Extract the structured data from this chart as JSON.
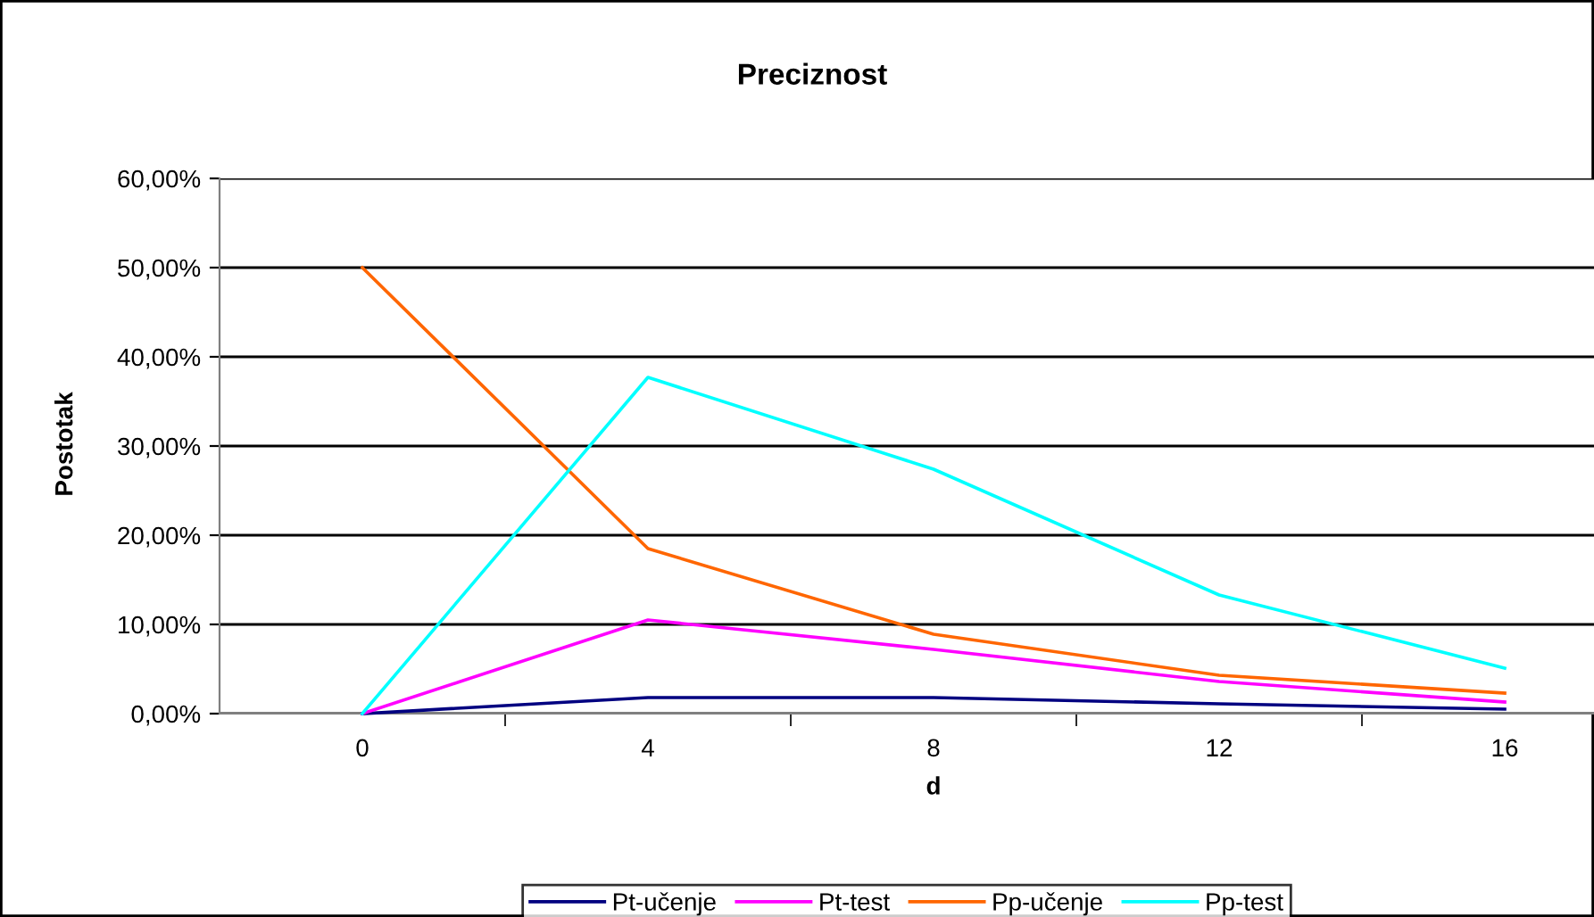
{
  "chart_data": {
    "type": "line",
    "title": "Preciznost",
    "xlabel": "d",
    "ylabel": "Postotak",
    "categories": [
      "0",
      "4",
      "8",
      "12",
      "16"
    ],
    "series": [
      {
        "name": "Pt-učenje",
        "color": "#000080",
        "values": [
          0,
          1.8,
          1.8,
          1.1,
          0.5
        ]
      },
      {
        "name": "Pt-test",
        "color": "#ff00ff",
        "values": [
          0,
          10.5,
          7.2,
          3.6,
          1.3
        ]
      },
      {
        "name": "Pp-učenje",
        "color": "#ff6600",
        "values": [
          50,
          18.5,
          8.9,
          4.3,
          2.3
        ]
      },
      {
        "name": "Pp-test",
        "color": "#00ffff",
        "values": [
          0,
          37.7,
          27.4,
          13.3,
          5.1
        ]
      }
    ],
    "ylim": [
      0,
      60
    ],
    "yticks": [
      {
        "value": 0,
        "label": "0,00%"
      },
      {
        "value": 10,
        "label": "10,00%"
      },
      {
        "value": 20,
        "label": "20,00%"
      },
      {
        "value": 30,
        "label": "30,00%"
      },
      {
        "value": 40,
        "label": "40,00%"
      },
      {
        "value": 50,
        "label": "50,00%"
      },
      {
        "value": 60,
        "label": "60,00%"
      }
    ],
    "grid": "y",
    "legend": "bottom",
    "marker": "none",
    "line_style": "solid"
  }
}
